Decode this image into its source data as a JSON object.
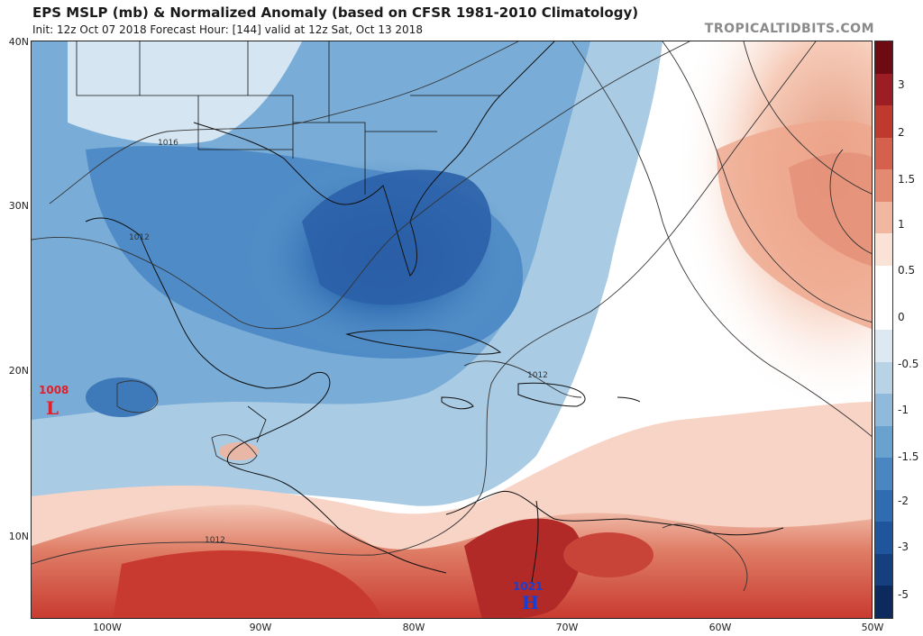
{
  "header": {
    "title": "EPS MSLP (mb) & Normalized Anomaly (based on CFSR 1981-2010 Climatology)",
    "subtitle": "Init: 12z Oct 07 2018   Forecast Hour: [144]   valid at 12z Sat, Oct 13 2018",
    "watermark": "TROPICALTIDBITS.COM"
  },
  "map": {
    "lat_labels": [
      "40N",
      "30N",
      "20N",
      "10N"
    ],
    "lon_labels": [
      "100W",
      "90W",
      "80W",
      "70W",
      "60W",
      "50W"
    ],
    "isobar_labels": [
      "1016",
      "1012",
      "1012",
      "1012"
    ],
    "pressure_centers": [
      {
        "type": "L",
        "value": "1008",
        "color": "#e0202a"
      },
      {
        "type": "H",
        "value": "1021",
        "color": "#1a3fcf"
      }
    ]
  },
  "colorbar": {
    "labels": [
      "3",
      "2",
      "1.5",
      "1",
      "0.5",
      "0",
      "-0.5",
      "-1",
      "-1.5",
      "-2",
      "-3",
      "-5"
    ],
    "colors": [
      "#6e0a12",
      "#9c1d23",
      "#c0392f",
      "#d5604d",
      "#e58a72",
      "#f1b7a1",
      "#fbe2d7",
      "#ffffff",
      "#ffffff",
      "#dce9f2",
      "#b8d3e6",
      "#8fbadb",
      "#6aa2cf",
      "#4a87c2",
      "#2f6cb1",
      "#1f559c",
      "#163f80",
      "#0d2a5e"
    ]
  },
  "colors": {
    "negative_anomaly": "#2f6cb1",
    "positive_anomaly": "#c0392f",
    "neutral": "#ffffff"
  }
}
